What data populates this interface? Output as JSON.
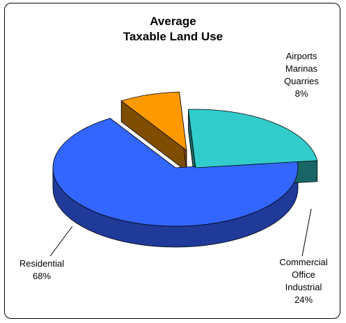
{
  "chart_data": {
    "type": "pie",
    "title": [
      "Average",
      "Taxable Land Use"
    ],
    "slices": [
      {
        "label": [
          "Residential"
        ],
        "value": 68,
        "display": "68%",
        "color": "#3366FF",
        "side_color": "#1F3A99"
      },
      {
        "label": [
          "Airports",
          "Marinas",
          "Quarries"
        ],
        "value": 8,
        "display": "8%",
        "color": "#FF9900",
        "side_color": "#7F4D00"
      },
      {
        "label": [
          "Commercial",
          "Office",
          "Industrial"
        ],
        "value": 24,
        "display": "24%",
        "color": "#33CCCC",
        "side_color": "#1A6666"
      }
    ],
    "three_d": true,
    "legend": "none"
  }
}
